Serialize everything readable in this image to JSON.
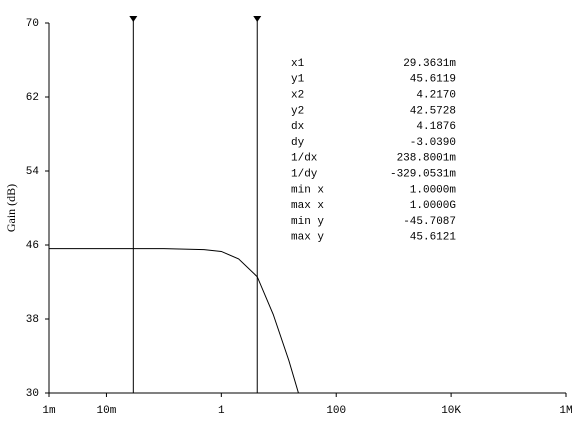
{
  "chart_data": {
    "type": "line",
    "ylabel": "Gain (dB)",
    "x": [
      0.001,
      0.01,
      0.1,
      0.5,
      1,
      2,
      4.217,
      8,
      15,
      22
    ],
    "values": [
      45.61,
      45.61,
      45.61,
      45.5,
      45.3,
      44.5,
      42.57,
      38.5,
      33.5,
      30
    ],
    "color": "#000000",
    "log_x": true,
    "xlim": [
      0.001,
      1000000
    ],
    "ylim": [
      30,
      70
    ],
    "xticks": [
      {
        "value": 0.001,
        "label": "1m"
      },
      {
        "value": 0.01,
        "label": "10m"
      },
      {
        "value": 1,
        "label": "1"
      },
      {
        "value": 100,
        "label": "100"
      },
      {
        "value": 10000,
        "label": "10K"
      },
      {
        "value": 1000000,
        "label": "1M"
      }
    ],
    "yticks": [
      30,
      38,
      46,
      54,
      62,
      70
    ],
    "cursors": [
      0.0293631,
      4.217
    ],
    "readout": [
      [
        "x1",
        "29.3631m"
      ],
      [
        "y1",
        "45.6119"
      ],
      [
        "x2",
        "4.2170"
      ],
      [
        "y2",
        "42.5728"
      ],
      [
        "dx",
        "4.1876"
      ],
      [
        "dy",
        "-3.0390"
      ],
      [
        "1/dx",
        "238.8001m"
      ],
      [
        "1/dy",
        "-329.0531m"
      ],
      [
        "min x",
        "1.0000m"
      ],
      [
        "max x",
        "1.0000G"
      ],
      [
        "min y",
        "-45.7087"
      ],
      [
        "max y",
        "45.6121"
      ]
    ]
  }
}
